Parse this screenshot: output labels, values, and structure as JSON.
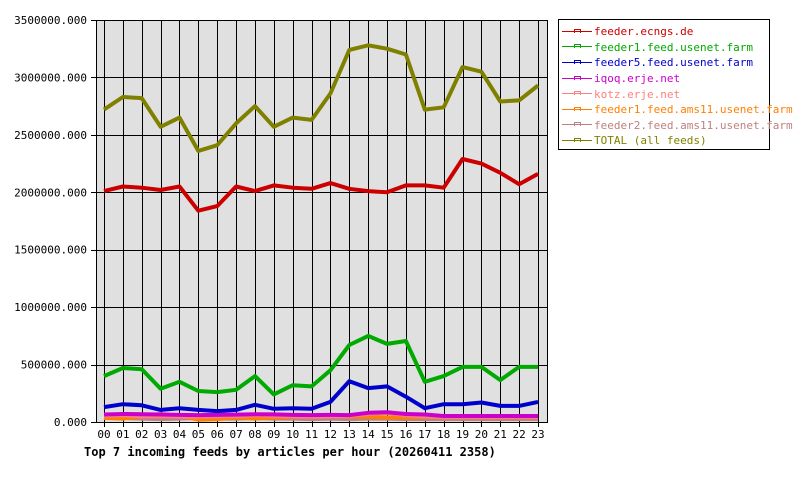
{
  "chart_data": {
    "type": "line",
    "title": "Top 7 incoming feeds by articles per hour (20260411 2358)",
    "xlabel": "",
    "ylabel": "",
    "ylim": [
      0,
      3500000
    ],
    "grid": true,
    "legend_position": "right",
    "x": [
      "00",
      "01",
      "02",
      "03",
      "04",
      "05",
      "06",
      "07",
      "08",
      "09",
      "10",
      "11",
      "12",
      "13",
      "14",
      "15",
      "16",
      "17",
      "18",
      "19",
      "20",
      "21",
      "22",
      "23"
    ],
    "y_ticks": [
      "0.000",
      "500000.000",
      "1000000.000",
      "1500000.000",
      "2000000.000",
      "2500000.000",
      "3000000.000",
      "3500000.000"
    ],
    "series": [
      {
        "name": "feeder.ecngs.de",
        "color": "#cc0000",
        "values": [
          2010000,
          2050000,
          2040000,
          2020000,
          2050000,
          1840000,
          1880000,
          2050000,
          2010000,
          2060000,
          2040000,
          2030000,
          2080000,
          2030000,
          2010000,
          2000000,
          2060000,
          2060000,
          2040000,
          2290000,
          2250000,
          2170000,
          2070000,
          2160000
        ]
      },
      {
        "name": "feeder1.feed.usenet.farm",
        "color": "#00aa00",
        "values": [
          400000,
          470000,
          460000,
          290000,
          350000,
          270000,
          260000,
          280000,
          400000,
          240000,
          320000,
          310000,
          450000,
          670000,
          750000,
          680000,
          705000,
          350000,
          400000,
          480000,
          480000,
          365000,
          480000,
          480000
        ]
      },
      {
        "name": "feeder5.feed.usenet.farm",
        "color": "#0000cc",
        "values": [
          130000,
          155000,
          145000,
          105000,
          120000,
          105000,
          95000,
          105000,
          150000,
          115000,
          120000,
          115000,
          175000,
          355000,
          295000,
          310000,
          220000,
          120000,
          155000,
          155000,
          170000,
          140000,
          140000,
          175000
        ]
      },
      {
        "name": "iqoq.erje.net",
        "color": "#cc00cc",
        "values": [
          65000,
          70000,
          68000,
          65000,
          62000,
          60000,
          62000,
          64000,
          68000,
          66000,
          62000,
          60000,
          62000,
          60000,
          80000,
          85000,
          70000,
          65000,
          52000,
          52000,
          52000,
          52000,
          52000,
          52000
        ]
      },
      {
        "name": "kotz.erje.net",
        "color": "#ff8080",
        "values": [
          55000,
          58000,
          50000,
          52000,
          48000,
          46000,
          50000,
          52000,
          58000,
          55000,
          50000,
          48000,
          50000,
          55000,
          70000,
          80000,
          60000,
          50000,
          45000,
          45000,
          44000,
          44000,
          45000,
          46000
        ]
      },
      {
        "name": "feeder1.feed.ams11.usenet.farm",
        "color": "#ff8000",
        "values": [
          35000,
          30000,
          50000,
          70000,
          55000,
          20000,
          25000,
          40000,
          30000,
          40000,
          45000,
          55000,
          60000,
          50000,
          45000,
          40000,
          40000,
          45000,
          45000,
          45000,
          45000,
          45000,
          45000,
          45000
        ]
      },
      {
        "name": "feeder2.feed.ams11.usenet.farm",
        "color": "#c08080",
        "values": [
          40000,
          35000,
          30000,
          25000,
          30000,
          35000,
          30000,
          30000,
          35000,
          30000,
          30000,
          25000,
          30000,
          25000,
          30000,
          30000,
          25000,
          25000,
          25000,
          25000,
          25000,
          25000,
          25000,
          25000
        ]
      },
      {
        "name": "TOTAL (all feeds)",
        "color": "#808000",
        "values": [
          2720000,
          2830000,
          2820000,
          2570000,
          2650000,
          2360000,
          2410000,
          2600000,
          2750000,
          2570000,
          2650000,
          2630000,
          2860000,
          3240000,
          3280000,
          3250000,
          3200000,
          2720000,
          2740000,
          3090000,
          3050000,
          2790000,
          2800000,
          2930000
        ]
      }
    ]
  },
  "legend": {
    "items": [
      {
        "label": "feeder.ecngs.de",
        "color": "#cc0000"
      },
      {
        "label": "feeder1.feed.usenet.farm",
        "color": "#00aa00"
      },
      {
        "label": "feeder5.feed.usenet.farm",
        "color": "#0000cc"
      },
      {
        "label": "iqoq.erje.net",
        "color": "#cc00cc"
      },
      {
        "label": "kotz.erje.net",
        "color": "#ff8080"
      },
      {
        "label": "feeder1.feed.ams11.usenet.farm",
        "color": "#ff8000"
      },
      {
        "label": "feeder2.feed.ams11.usenet.farm",
        "color": "#c08080"
      },
      {
        "label": "TOTAL (all feeds)",
        "color": "#808000"
      }
    ]
  },
  "colors": {
    "plot_background": "#e0e0e0",
    "grid": "#000000"
  }
}
